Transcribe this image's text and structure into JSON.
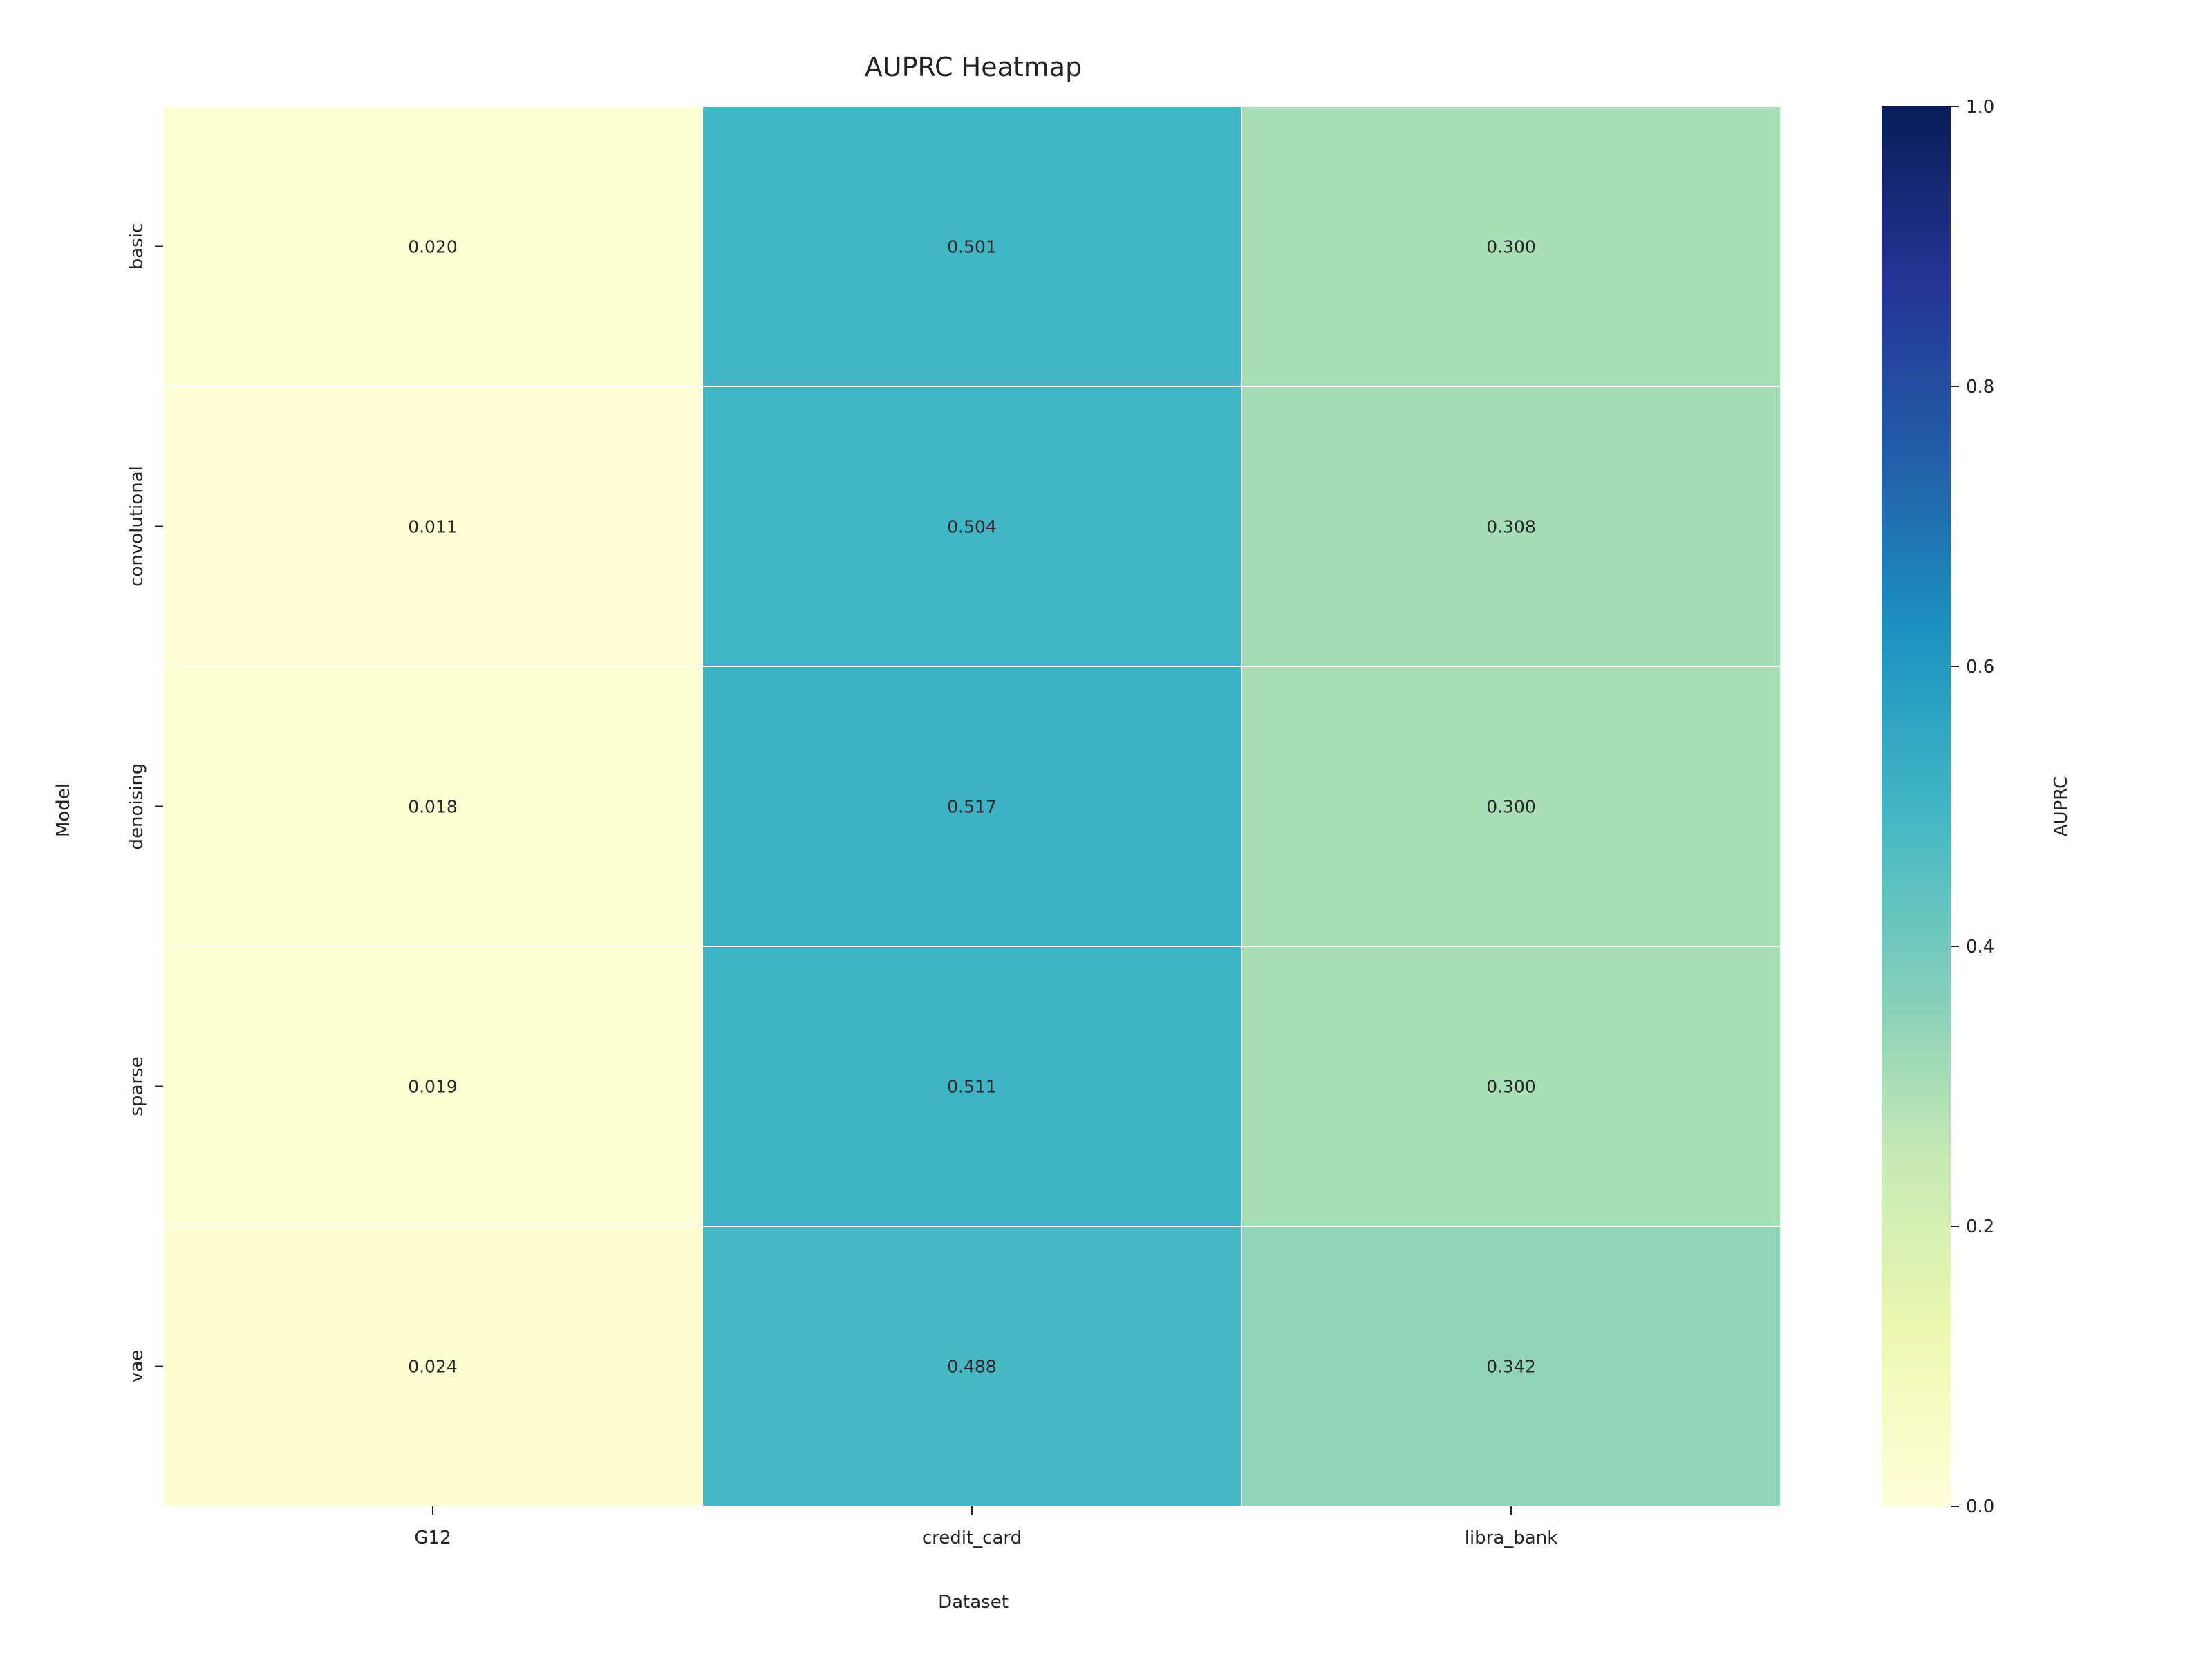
{
  "chart_data": {
    "type": "heatmap",
    "title": "AUPRC Heatmap",
    "xlabel": "Dataset",
    "ylabel": "Model",
    "x_categories": [
      "G12",
      "credit_card",
      "libra_bank"
    ],
    "y_categories": [
      "basic",
      "convolutional",
      "denoising",
      "sparse",
      "vae"
    ],
    "values": [
      [
        0.02,
        0.501,
        0.3
      ],
      [
        0.011,
        0.504,
        0.308
      ],
      [
        0.018,
        0.517,
        0.3
      ],
      [
        0.019,
        0.511,
        0.3
      ],
      [
        0.024,
        0.488,
        0.342
      ]
    ],
    "value_labels": [
      [
        "0.020",
        "0.501",
        "0.300"
      ],
      [
        "0.011",
        "0.504",
        "0.308"
      ],
      [
        "0.018",
        "0.517",
        "0.300"
      ],
      [
        "0.019",
        "0.511",
        "0.300"
      ],
      [
        "0.024",
        "0.488",
        "0.342"
      ]
    ],
    "colorbar": {
      "label": "AUPRC",
      "range": [
        0.0,
        1.0
      ],
      "ticks": [
        "0.0",
        "0.2",
        "0.4",
        "0.6",
        "0.8",
        "1.0"
      ],
      "colormap": "YlGnBu",
      "stops": [
        "#ffffd9",
        "#edf8b1",
        "#c7e9b4",
        "#7fcdbb",
        "#41b6c4",
        "#1d91c0",
        "#225ea8",
        "#253494",
        "#081d58"
      ]
    },
    "grid": false
  }
}
